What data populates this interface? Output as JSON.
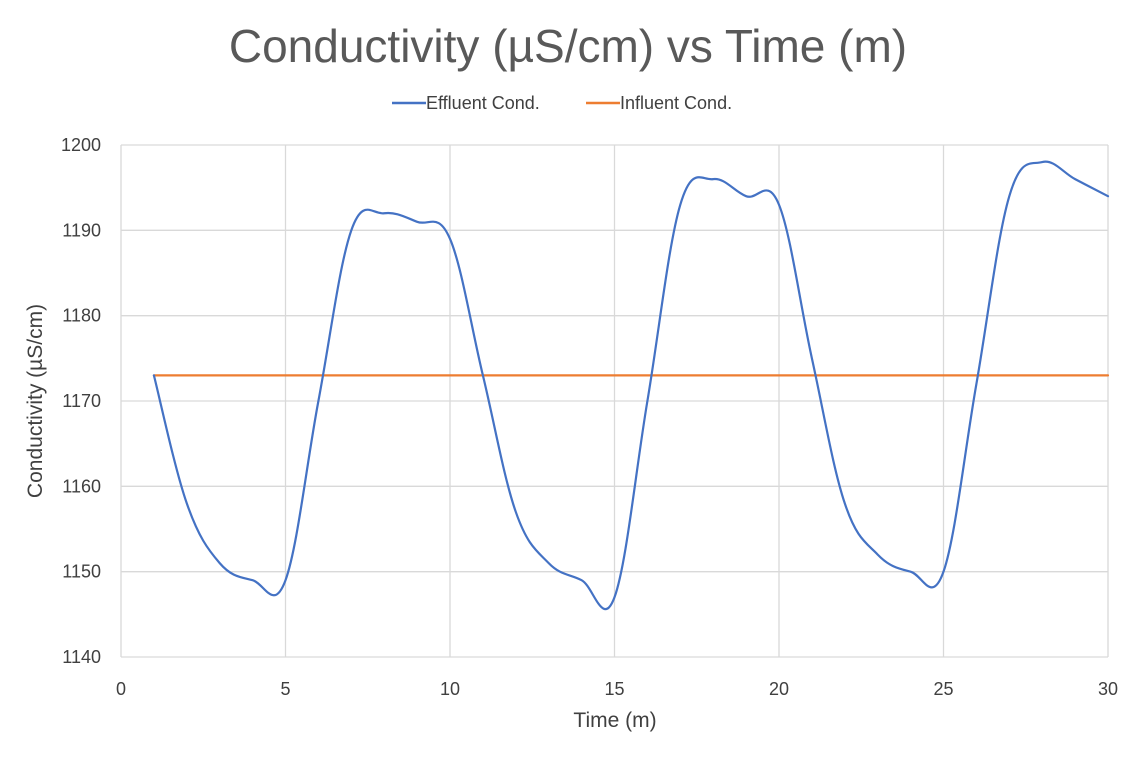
{
  "chart_data": {
    "type": "line",
    "title": "Conductivity (µS/cm) vs Time (m)",
    "xlabel": "Time (m)",
    "ylabel": "Conductivity (µS/cm)",
    "xlim": [
      0,
      30
    ],
    "ylim": [
      1140,
      1200
    ],
    "xticks": [
      0,
      5,
      10,
      15,
      20,
      25,
      30
    ],
    "yticks": [
      1140,
      1150,
      1160,
      1170,
      1180,
      1190,
      1200
    ],
    "grid": true,
    "legend_position": "top",
    "series": [
      {
        "name": "Effluent Cond.",
        "color": "#4472c4",
        "x": [
          1,
          2,
          3,
          4,
          5,
          6,
          7,
          8,
          9,
          10,
          11,
          12,
          13,
          14,
          15,
          16,
          17,
          18,
          19,
          20,
          21,
          22,
          23,
          24,
          25,
          26,
          27,
          28,
          29,
          30
        ],
        "y": [
          1173,
          1158,
          1151,
          1149,
          1149,
          1170,
          1190,
          1192,
          1191,
          1189,
          1173,
          1157,
          1151,
          1149,
          1147,
          1170,
          1193,
          1196,
          1194,
          1193,
          1175,
          1158,
          1152,
          1150,
          1150,
          1172,
          1194,
          1198,
          1196,
          1194
        ]
      },
      {
        "name": "Influent Cond.",
        "color": "#ed7d31",
        "x": [
          1,
          30
        ],
        "y": [
          1173,
          1173
        ]
      }
    ]
  }
}
